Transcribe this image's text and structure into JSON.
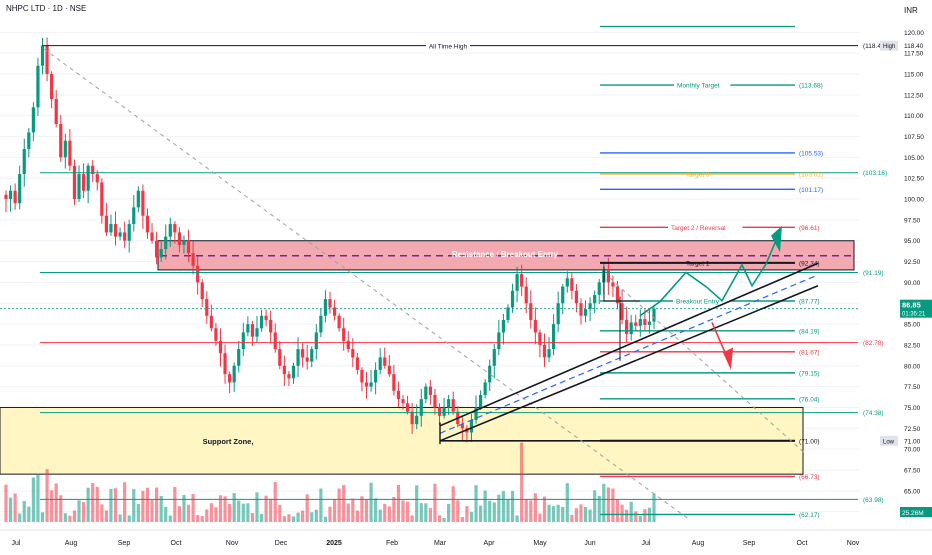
{
  "header": {
    "symbol_line": "NHPC LTD · 1D · NSE",
    "currency": "INR"
  },
  "chart_data": {
    "type": "candlestick",
    "title": "NHPC LTD · 1D · NSE",
    "currency": "INR",
    "ylim": [
      61.5,
      121
    ],
    "y_ticks": [
      62.5,
      65,
      67.5,
      70,
      72.5,
      75,
      77.5,
      80,
      82.5,
      85,
      87.5,
      90,
      92.5,
      95,
      97.5,
      100,
      102.5,
      105,
      107.5,
      110,
      112.5,
      115,
      117.5,
      120
    ],
    "x_ticks": [
      "Jul",
      "Aug",
      "Sep",
      "Oct",
      "Nov",
      "Dec",
      "2025",
      "Feb",
      "Mar",
      "Apr",
      "May",
      "Jun",
      "Jul",
      "Aug",
      "Sep",
      "Oct",
      "Nov"
    ],
    "closes": [
      100,
      101,
      99.5,
      103,
      106,
      108,
      111,
      116,
      118.4,
      115,
      112,
      109,
      105,
      107,
      104,
      100,
      103,
      101,
      104,
      103,
      102,
      98,
      96,
      97,
      95.5,
      96,
      95,
      97,
      99,
      101,
      98,
      96,
      95,
      93,
      94,
      95.5,
      97,
      96,
      94.5,
      95,
      93.5,
      92,
      90,
      88,
      86,
      84.5,
      83,
      81.5,
      79,
      78,
      80,
      82,
      84,
      85,
      83.5,
      84.5,
      86,
      85.5,
      84,
      82,
      80,
      79,
      78.5,
      80,
      82,
      81,
      80.5,
      82,
      84,
      86,
      88,
      87,
      86,
      84.5,
      83,
      82,
      81,
      79.5,
      78,
      77.5,
      78,
      79.5,
      81,
      80,
      79,
      77,
      76,
      75.5,
      74.5,
      73,
      74,
      76,
      77.5,
      76.5,
      75,
      74,
      75,
      76,
      74.5,
      73,
      72.5,
      72,
      73.5,
      75,
      76.5,
      78,
      80,
      82,
      84,
      85.5,
      87,
      89,
      91,
      89.5,
      87.5,
      85.5,
      84,
      82.5,
      81,
      82,
      85,
      87.5,
      89.5,
      90.5,
      89,
      87.5,
      86,
      86.8,
      87.5,
      88.5,
      90,
      91.5,
      90,
      89.5,
      87.5,
      85.5,
      83.8,
      85.2,
      84.8,
      85.6,
      84.9,
      85.3,
      86.85
    ],
    "volume_axis_label": "25.26M",
    "last_price": "86.85",
    "countdown": "01:35:21",
    "labels": {
      "all_time_high": "All Time High",
      "resistance": "Resistance / Breakout Entry",
      "support": "Support Zone,",
      "monthly_target": "Monthly Target",
      "target3": "Target 3",
      "target2": "Target 2 / Reversal",
      "target1": "Target 1",
      "breakout_entry": "Breakout Entry",
      "high_tag": "High",
      "low_tag": "Low"
    },
    "levels": [
      {
        "value": 118.4,
        "text": "(118.40)",
        "color": "#131722"
      },
      {
        "value": 113.68,
        "text": "(113.68)",
        "color": "#089981"
      },
      {
        "value": 105.53,
        "text": "(105.53)",
        "color": "#2962ff"
      },
      {
        "value": 103.01,
        "text": "(103.01)",
        "color": "#f0b429"
      },
      {
        "value": 101.17,
        "text": "(101.17)",
        "color": "#2962ff"
      },
      {
        "value": 96.61,
        "text": "(96.61)",
        "color": "#f23645"
      },
      {
        "value": 92.34,
        "text": "(92.34)",
        "color": "#131722"
      },
      {
        "value": 87.77,
        "text": "(87.77)",
        "color": "#089981"
      },
      {
        "value": 84.19,
        "text": "(84.19)",
        "color": "#089981"
      },
      {
        "value": 81.67,
        "text": "(81.67)",
        "color": "#f23645"
      },
      {
        "value": 79.15,
        "text": "(79.15)",
        "color": "#089981"
      },
      {
        "value": 76.04,
        "text": "(76.04)",
        "color": "#089981"
      },
      {
        "value": 71.0,
        "text": "(71.00)",
        "color": "#131722"
      },
      {
        "value": 66.73,
        "text": "(66.73)",
        "color": "#f23645"
      },
      {
        "value": 62.17,
        "text": "(62.17)",
        "color": "#089981"
      }
    ],
    "right_levels": [
      {
        "value": 103.16,
        "text": "(103.16)",
        "color": "#089981"
      },
      {
        "value": 91.19,
        "text": "(91.19)",
        "color": "#089981"
      },
      {
        "value": 82.78,
        "text": "(82.78)",
        "color": "#f23645"
      },
      {
        "value": 74.38,
        "text": "(74.38)",
        "color": "#089981"
      },
      {
        "value": 63.98,
        "text": "(63.98)",
        "color": "#089981"
      }
    ],
    "axis_tags": {
      "high": "118.40",
      "low": "71.00"
    },
    "zones": {
      "resistance": [
        91.5,
        95
      ],
      "support": [
        67,
        75
      ]
    },
    "colors": {
      "up": "#089981",
      "down": "#f23645",
      "resistance_fill": "#f0949c",
      "support_fill": "#fff6c4"
    }
  }
}
